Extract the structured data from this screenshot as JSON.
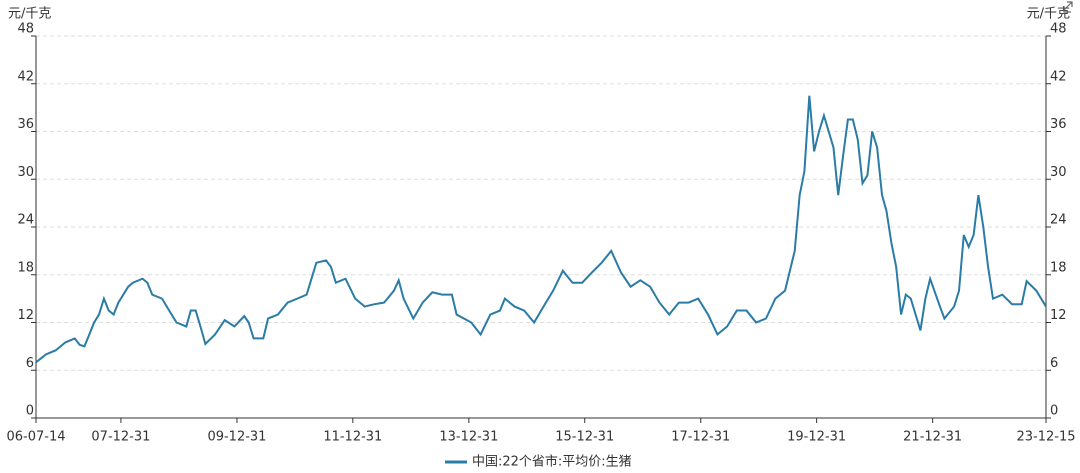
{
  "chart_data": {
    "type": "line",
    "y_unit": "元/千克",
    "y2_unit": "元/千克",
    "xlim": [
      "06-07-14",
      "23-12-15"
    ],
    "xticks": [
      "06-07-14",
      "07-12-31",
      "09-12-31",
      "11-12-31",
      "13-12-31",
      "15-12-31",
      "17-12-31",
      "19-12-31",
      "21-12-31",
      "23-12-15"
    ],
    "ylim": [
      0,
      48
    ],
    "yticks": [
      0,
      6,
      12,
      18,
      24,
      30,
      36,
      42,
      48
    ],
    "y2lim": [
      0,
      48
    ],
    "y2ticks": [
      0,
      6,
      12,
      18,
      24,
      30,
      36,
      42,
      48
    ],
    "grid": true,
    "legend": "bottom",
    "x": [
      "06-07-14",
      "06-09-15",
      "06-11-15",
      "07-01-15",
      "07-03-15",
      "07-04-15",
      "07-05-15",
      "07-06-15",
      "07-07-15",
      "07-08-15",
      "07-09-15",
      "07-10-15",
      "07-11-15",
      "07-12-15",
      "08-02-15",
      "08-03-15",
      "08-05-15",
      "08-06-15",
      "08-07-15",
      "08-09-15",
      "08-10-15",
      "08-12-15",
      "09-02-15",
      "09-03-15",
      "09-04-15",
      "09-05-15",
      "09-06-15",
      "09-08-15",
      "09-10-15",
      "09-12-15",
      "10-02-15",
      "10-03-15",
      "10-04-15",
      "10-06-15",
      "10-07-15",
      "10-09-15",
      "10-11-15",
      "11-01-15",
      "11-03-15",
      "11-05-15",
      "11-07-15",
      "11-08-15",
      "11-09-15",
      "11-11-15",
      "12-01-15",
      "12-03-15",
      "12-05-15",
      "12-07-15",
      "12-09-15",
      "12-10-15",
      "12-11-15",
      "13-01-15",
      "13-03-15",
      "13-05-15",
      "13-07-15",
      "13-09-15",
      "13-10-15",
      "14-01-15",
      "14-03-15",
      "14-05-15",
      "14-07-15",
      "14-08-15",
      "14-10-15",
      "14-12-15",
      "15-02-15",
      "15-04-15",
      "15-06-15",
      "15-08-15",
      "15-10-15",
      "15-12-15",
      "16-02-15",
      "16-04-15",
      "16-06-15",
      "16-08-15",
      "16-10-15",
      "16-12-15",
      "17-02-15",
      "17-04-15",
      "17-06-15",
      "17-08-15",
      "17-10-15",
      "17-12-15",
      "18-02-15",
      "18-04-15",
      "18-06-15",
      "18-08-15",
      "18-10-15",
      "18-12-15",
      "19-02-15",
      "19-04-15",
      "19-06-15",
      "19-08-15",
      "19-09-15",
      "19-10-15",
      "19-11-15",
      "19-12-15",
      "20-01-15",
      "20-02-15",
      "20-04-15",
      "20-05-15",
      "20-06-15",
      "20-07-15",
      "20-08-15",
      "20-09-15",
      "20-10-15",
      "20-11-15",
      "20-12-15",
      "21-01-15",
      "21-02-15",
      "21-03-15",
      "21-04-15",
      "21-05-15",
      "21-06-15",
      "21-07-15",
      "21-08-15",
      "21-10-15",
      "21-11-15",
      "21-12-15",
      "22-02-15",
      "22-03-15",
      "22-05-15",
      "22-06-15",
      "22-07-15",
      "22-08-15",
      "22-09-15",
      "22-10-15",
      "22-11-15",
      "22-12-15",
      "23-01-15",
      "23-03-15",
      "23-05-15",
      "23-07-15",
      "23-08-15",
      "23-10-15",
      "23-12-15"
    ],
    "series": [
      {
        "name": "中国:22个省市:平均价:生猪",
        "color": "#2a7ca6",
        "values": [
          7,
          8,
          8.5,
          9.5,
          10,
          9.2,
          9,
          10.5,
          12,
          13,
          15,
          13.5,
          13,
          14.5,
          16.5,
          17,
          17.5,
          17,
          15.5,
          15,
          14,
          12,
          11.5,
          13.5,
          13.5,
          11.5,
          9.3,
          10.5,
          12.3,
          11.5,
          12.8,
          12,
          10,
          10,
          12.5,
          13,
          14.5,
          15,
          15.5,
          19.5,
          19.8,
          19,
          17,
          17.5,
          15,
          14,
          14.3,
          14.5,
          16,
          17.3,
          15,
          12.5,
          14.5,
          15.8,
          15.5,
          15.5,
          13,
          12,
          10.5,
          13,
          13.5,
          15,
          14,
          13.5,
          12,
          14,
          16,
          18.5,
          17,
          17,
          18.3,
          19.5,
          21,
          18.3,
          16.5,
          17.3,
          16.5,
          14.5,
          13,
          14.5,
          14.5,
          15,
          13,
          10.5,
          11.5,
          13.5,
          13.5,
          12,
          12.5,
          15,
          16,
          21,
          28,
          31,
          40.5,
          33.5,
          36,
          38,
          34,
          28,
          33,
          37.5,
          37.5,
          35,
          29.5,
          30.5,
          36,
          34,
          28,
          26,
          22,
          19,
          13,
          15.5,
          15,
          11,
          15,
          17.5,
          14,
          12.5,
          14,
          16,
          23,
          21.5,
          23,
          28,
          24,
          19,
          15,
          15.5,
          14.3,
          14.3,
          17.2,
          16,
          14
        ]
      }
    ]
  }
}
